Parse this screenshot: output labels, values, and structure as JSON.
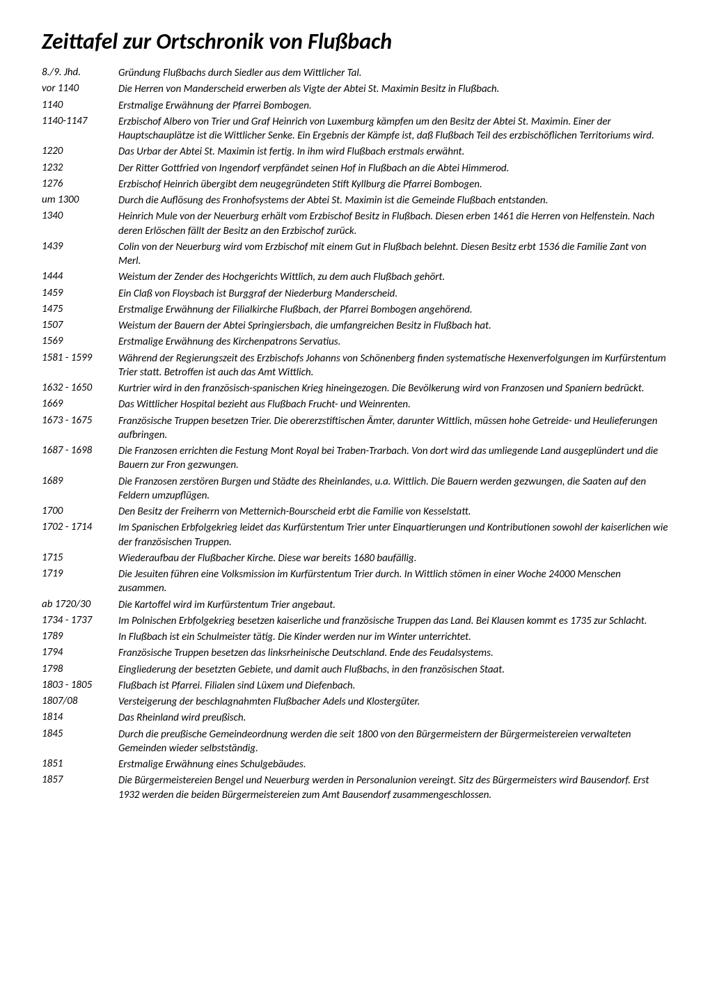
{
  "title": "Zeittafel zur Ortschronik von Flußbach",
  "entries": [
    {
      "date": "8./9. Jhd.",
      "desc": "Gründung Flußbachs durch Siedler aus dem Wittlicher Tal."
    },
    {
      "date": "vor 1140",
      "desc": "Die Herren von Manderscheid erwerben als Vigte der Abtei St. Maximin Besitz in Flußbach."
    },
    {
      "date": "1140",
      "desc": "Erstmalige Erwähnung der Pfarrei Bombogen."
    },
    {
      "date": "1140-1147",
      "desc": "Erzbischof Albero von Trier und Graf Heinrich von Luxemburg kämpfen um den Besitz der Abtei St. Maximin. Einer der Hauptschauplätze ist die Wittlicher Senke. Ein Ergebnis der Kämpfe ist, daß Flußbach Teil des erzbischöflichen Territoriums wird."
    },
    {
      "date": "1220",
      "desc": "Das Urbar der Abtei St. Maximin ist fertig. In ihm wird Flußbach erstmals erwähnt."
    },
    {
      "date": "1232",
      "desc": "Der Ritter Gottfried von Ingendorf verpfändet seinen Hof in Flußbach an die Abtei Himmerod."
    },
    {
      "date": "1276",
      "desc": "Erzbischof Heinrich übergibt dem neugegründeten Stift Kyllburg die Pfarrei Bombogen."
    },
    {
      "date": "um 1300",
      "desc": "Durch die Auflösung des Fronhofsystems der Abtei St. Maximin ist die Gemeinde Flußbach entstanden."
    },
    {
      "date": "1340",
      "desc": "Heinrich Mule von der Neuerburg erhält vom Erzbischof Besitz in Flußbach. Diesen erben 1461 die Herren von Helfenstein. Nach deren Erlöschen fällt der Besitz an den Erzbischof zurück."
    },
    {
      "date": "1439",
      "desc": "Colin von der Neuerburg wird vom Erzbischof mit einem Gut in Flußbach belehnt. Diesen Besitz erbt 1536 die Familie Zant von Merl."
    },
    {
      "date": "1444",
      "desc": "Weistum der Zender des Hochgerichts Wittlich, zu dem auch Flußbach gehört."
    },
    {
      "date": "1459",
      "desc": "Ein Claß von Floysbach ist Burggraf der Niederburg Manderscheid."
    },
    {
      "date": "1475",
      "desc": "Erstmalige Erwähnung der Filialkirche Flußbach, der Pfarrei Bombogen  angehörend."
    },
    {
      "date": "1507",
      "desc": "Weistum der Bauern der Abtei Springiersbach, die umfangreichen Besitz in Flußbach hat."
    },
    {
      "date": "1569",
      "desc": "Erstmalige Erwähnung des Kirchenpatrons Servatius."
    },
    {
      "date": "1581 - 1599",
      "desc": "Während der Regierungszeit des Erzbischofs Johanns von Schönenberg  finden systematische Hexenverfolgungen im Kurfürstentum Trier statt. Betroffen ist auch das Amt Wittlich."
    },
    {
      "date": "1632 - 1650",
      "desc": "Kurtrier wird in den französisch-spanischen Krieg hineingezogen. Die Bevölkerung wird von Franzosen und Spaniern bedrückt."
    },
    {
      "date": "1669",
      "desc": "Das Wittlicher Hospital bezieht aus Flußbach Frucht- und Weinrenten."
    },
    {
      "date": "1673 - 1675",
      "desc": "Französische Truppen besetzen Trier. Die obererzstiftischen Ämter, darunter Wittlich, müssen hohe Getreide- und Heulieferungen aufbringen."
    },
    {
      "date": "1687 - 1698",
      "desc": "Die Franzosen errichten die Festung Mont Royal bei Traben-Trarbach. Von dort wird das umliegende Land ausgeplündert und die Bauern zur Fron gezwungen."
    },
    {
      "date": "1689",
      "desc": "Die Franzosen zerstören Burgen und Städte des Rheinlandes, u.a. Wittlich. Die Bauern werden gezwungen, die Saaten auf den Feldern umzupflügen."
    },
    {
      "date": "1700",
      "desc": "Den Besitz der Freiherrn von Metternich-Bourscheid erbt die Familie von Kesselstatt."
    },
    {
      "date": "1702 - 1714",
      "desc": "Im Spanischen Erbfolgekrieg leidet das Kurfürstentum Trier unter Einquartierungen und Kontributionen sowohl der kaiserlichen wie der  französischen Truppen."
    },
    {
      "date": "1715",
      "desc": "Wiederaufbau der Flußbacher Kirche. Diese war bereits 1680 baufällig."
    },
    {
      "date": "1719",
      "desc": "Die Jesuiten führen eine Volksmission im Kurfürstentum Trier durch. In Wittlich stömen in einer Woche 24000 Menschen zusammen."
    },
    {
      "date": "ab 1720/30",
      "desc": "Die Kartoffel wird im Kurfürstentum Trier angebaut."
    },
    {
      "date": "1734 - 1737",
      "desc": "Im Polnischen Erbfolgekrieg besetzen kaiserliche und französische Truppen das Land. Bei Klausen kommt es 1735 zur Schlacht."
    },
    {
      "date": "1789",
      "desc": "In Flußbach ist ein Schulmeister tätig. Die Kinder werden nur im Winter unterrichtet."
    },
    {
      "date": "1794",
      "desc": "Französische Truppen besetzen das linksrheinische Deutschland. Ende des Feudalsystems."
    },
    {
      "date": "1798",
      "desc": "Eingliederung der besetzten Gebiete, und damit auch Flußbachs, in den französischen Staat."
    },
    {
      "date": "1803 - 1805",
      "desc": "Flußbach ist Pfarrei. Filialen sind Lüxem und Diefenbach."
    },
    {
      "date": "1807/08",
      "desc": "Versteigerung der beschlagnahmten Flußbacher Adels und Klostergüter."
    },
    {
      "date": "1814",
      "desc": "Das Rheinland wird preußisch."
    },
    {
      "date": "1845",
      "desc": "Durch die preußische Gemeindeordnung werden die seit 1800 von den Bürgermeistern der Bürgermeistereien verwalteten Gemeinden wieder selbstständig."
    },
    {
      "date": "1851",
      "desc": "Erstmalige Erwähnung eines Schulgebäudes."
    },
    {
      "date": "1857",
      "desc": "Die Bürgermeistereien Bengel und Neuerburg werden in Personalunion  vereingt. Sitz des Bürgermeisters wird Bausendorf. Erst 1932 werden die beiden Bürgermeistereien zum Amt Bausendorf  zusammengeschlossen."
    }
  ]
}
